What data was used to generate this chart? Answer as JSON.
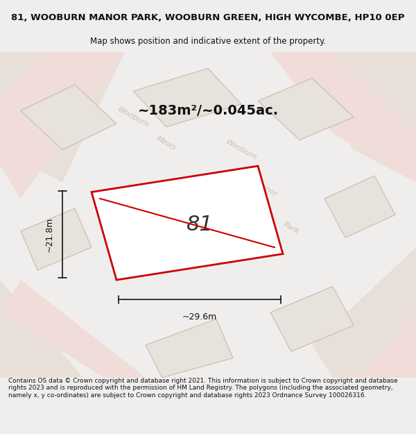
{
  "title_line1": "81, WOOBURN MANOR PARK, WOOBURN GREEN, HIGH WYCOMBE, HP10 0EP",
  "title_line2": "Map shows position and indicative extent of the property.",
  "area_text": "~183m²/~0.045ac.",
  "label_width": "~29.6m",
  "label_height": "~21.8m",
  "plot_number": "81",
  "footer_text": "Contains OS data © Crown copyright and database right 2021. This information is subject to Crown copyright and database rights 2023 and is reproduced with the permission of HM Land Registry. The polygons (including the associated geometry, namely x, y co-ordinates) are subject to Crown copyright and database rights 2023 Ordnance Survey 100026316.",
  "bg_color": "#f0eeec",
  "map_bg": "#f5f3f0",
  "road_color": "#e8e0d8",
  "plot_fill": "#ffffff",
  "plot_edge_color": "#cc0000",
  "nearby_fill": "#e8e2dc",
  "nearby_edge": "#ccbbaa",
  "road_stripe_color": "#e8c8c0",
  "text_color": "#111111",
  "dim_color": "#111111",
  "water_text_color": "#bbbbbb"
}
